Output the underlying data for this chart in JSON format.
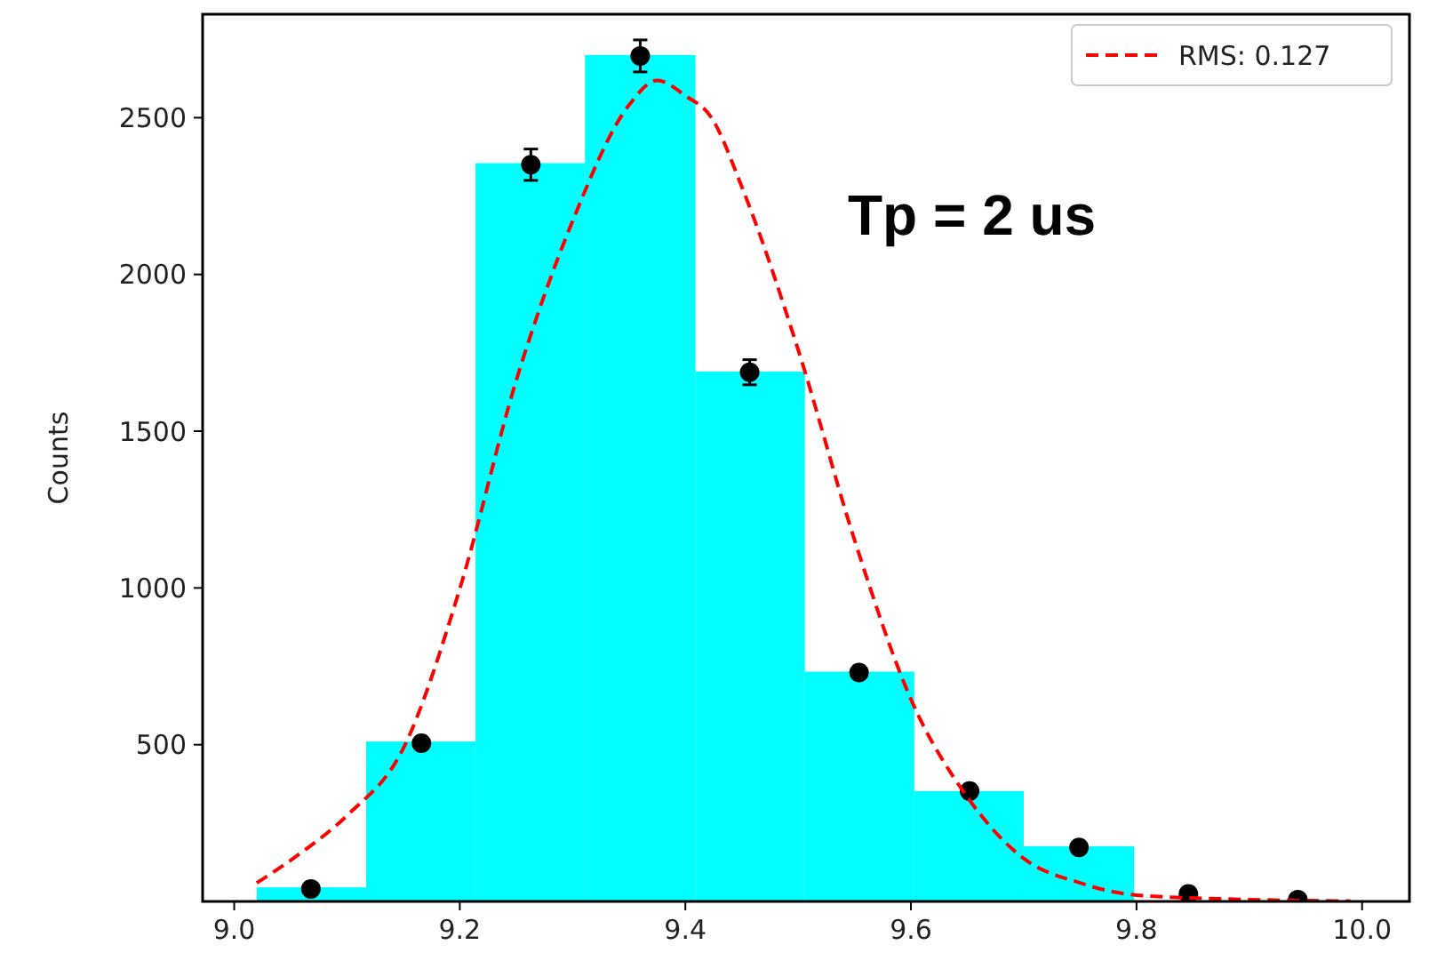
{
  "chart_data": {
    "type": "histogram",
    "ylabel": "Counts",
    "annotations": [
      "Tp = 2 us"
    ],
    "xlim": [
      8.972,
      10.042
    ],
    "xticks": [
      {
        "value": 9,
        "label": "9.0"
      },
      {
        "value": 9.2,
        "label": "9.2"
      },
      {
        "value": 9.4,
        "label": "9.4"
      },
      {
        "value": 9.6,
        "label": "9.6"
      },
      {
        "value": 9.8,
        "label": "9.8"
      },
      {
        "value": 10,
        "label": "10.0"
      }
    ],
    "ylim": [
      0,
      2830
    ],
    "yticks": [
      500,
      1000,
      1500,
      2000,
      2500
    ],
    "grid": false,
    "legend": "top right",
    "series": [
      {
        "color": "#00ffff",
        "bins": [
          9.02,
          9.117,
          9.214,
          9.311,
          9.409,
          9.506,
          9.603,
          9.7,
          9.798
        ],
        "values": [
          45,
          510,
          2355,
          2700,
          1690,
          733,
          352,
          176
        ]
      },
      {
        "type": "scatter",
        "color": "#000000",
        "marker": "circle",
        "x": [
          9.068,
          9.166,
          9.263,
          9.36,
          9.457,
          9.554,
          9.652,
          9.749,
          9.846,
          9.943
        ],
        "values": [
          40,
          505,
          2350,
          2697,
          1688,
          730,
          352,
          172,
          24,
          6
        ],
        "errors": [
          null,
          null,
          50,
          51,
          40,
          null,
          null,
          null,
          null,
          null
        ]
      },
      {
        "type": "line",
        "name": "RMS: 0.127",
        "color": "#ff0000",
        "line_style": "dashed",
        "x": [
          9.02,
          9.06,
          9.1,
          9.15,
          9.2,
          9.25,
          9.3,
          9.35,
          9.375,
          9.4,
          9.423,
          9.45,
          9.5,
          9.55,
          9.6,
          9.65,
          9.7,
          9.75,
          9.8,
          9.9,
          9.99
        ],
        "values": [
          59,
          157,
          274,
          489,
          997,
          1661,
          2170,
          2540,
          2619,
          2570,
          2501,
          2280,
          1760,
          1153,
          645,
          333,
          137,
          59,
          20,
          6,
          1
        ]
      }
    ]
  }
}
